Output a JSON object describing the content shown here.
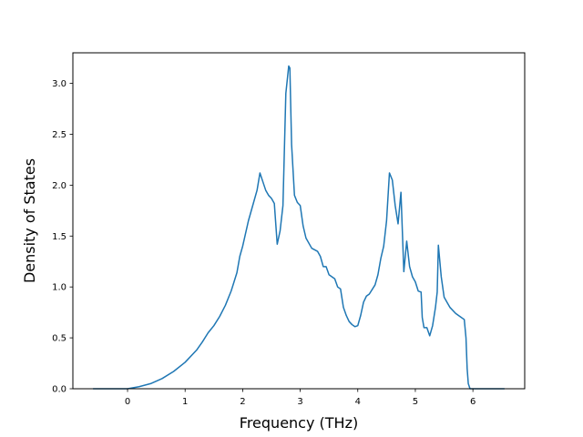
{
  "chart_data": {
    "type": "line",
    "title": "",
    "xlabel": "Frequency (THz)",
    "ylabel": "Density of States",
    "xlim": [
      -0.95,
      6.9
    ],
    "ylim": [
      0.0,
      3.3
    ],
    "xticks": [
      0,
      1,
      2,
      3,
      4,
      5,
      6
    ],
    "yticks": [
      0.0,
      0.5,
      1.0,
      1.5,
      2.0,
      2.5,
      3.0
    ],
    "xtick_labels": [
      "0",
      "1",
      "2",
      "3",
      "4",
      "5",
      "6"
    ],
    "ytick_labels": [
      "0.0",
      "0.5",
      "1.0",
      "1.5",
      "2.0",
      "2.5",
      "3.0"
    ],
    "grid": false,
    "legend": "none",
    "line_color": "#1f77b4",
    "series": [
      {
        "x": [
          -0.6,
          0.0,
          0.2,
          0.4,
          0.6,
          0.8,
          1.0,
          1.2,
          1.3,
          1.4,
          1.5,
          1.6,
          1.7,
          1.8,
          1.85,
          1.9,
          1.95,
          2.0,
          2.1,
          2.2,
          2.25,
          2.3,
          2.4,
          2.45,
          2.5,
          2.55,
          2.6,
          2.65,
          2.7,
          2.75,
          2.8,
          2.82,
          2.85,
          2.9,
          2.95,
          3.0,
          3.05,
          3.1,
          3.2,
          3.3,
          3.35,
          3.4,
          3.45,
          3.5,
          3.6,
          3.65,
          3.7,
          3.75,
          3.8,
          3.85,
          3.9,
          3.95,
          4.0,
          4.05,
          4.1,
          4.15,
          4.2,
          4.3,
          4.35,
          4.4,
          4.45,
          4.5,
          4.55,
          4.6,
          4.65,
          4.7,
          4.75,
          4.8,
          4.85,
          4.9,
          4.95,
          5.0,
          5.05,
          5.1,
          5.12,
          5.15,
          5.2,
          5.25,
          5.3,
          5.35,
          5.38,
          5.4,
          5.45,
          5.5,
          5.55,
          5.6,
          5.7,
          5.8,
          5.85,
          5.88,
          5.9,
          5.92,
          5.95,
          6.0,
          6.55
        ],
        "y": [
          0.0,
          0.0,
          0.02,
          0.05,
          0.1,
          0.17,
          0.26,
          0.38,
          0.46,
          0.55,
          0.62,
          0.71,
          0.82,
          0.96,
          1.05,
          1.14,
          1.3,
          1.4,
          1.65,
          1.85,
          1.95,
          2.12,
          1.95,
          1.9,
          1.87,
          1.82,
          1.42,
          1.55,
          1.8,
          2.9,
          3.17,
          3.15,
          2.4,
          1.9,
          1.83,
          1.8,
          1.6,
          1.48,
          1.38,
          1.35,
          1.3,
          1.2,
          1.2,
          1.12,
          1.08,
          1.0,
          0.98,
          0.8,
          0.72,
          0.66,
          0.63,
          0.61,
          0.62,
          0.72,
          0.85,
          0.91,
          0.93,
          1.02,
          1.12,
          1.28,
          1.4,
          1.65,
          2.12,
          2.05,
          1.8,
          1.62,
          1.93,
          1.15,
          1.45,
          1.2,
          1.1,
          1.05,
          0.96,
          0.95,
          0.7,
          0.6,
          0.6,
          0.52,
          0.62,
          0.8,
          0.95,
          1.41,
          1.1,
          0.9,
          0.85,
          0.8,
          0.74,
          0.7,
          0.68,
          0.5,
          0.2,
          0.05,
          0.0,
          0.0,
          0.0
        ]
      }
    ]
  }
}
